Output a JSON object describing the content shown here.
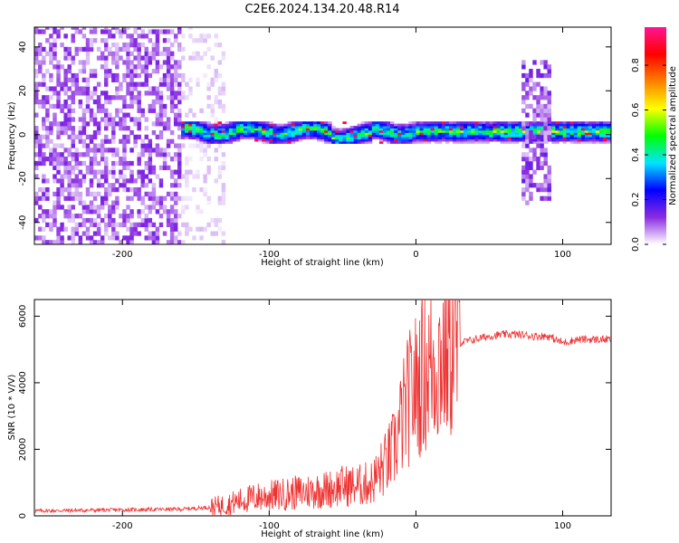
{
  "title": "C2E6.2024.134.20.48.R14",
  "chart_data": [
    {
      "type": "heatmap",
      "xlabel": "Height of straight line (km)",
      "ylabel": "Frequency (Hz)",
      "xlim": [
        -260,
        133
      ],
      "ylim": [
        -50,
        49
      ],
      "xticks": [
        -200,
        -100,
        0,
        100
      ],
      "yticks": [
        -40,
        -20,
        0,
        20,
        40
      ],
      "colorbar": {
        "label": "Normalized spectral amplitude",
        "range": [
          0,
          0.97
        ],
        "ticks": [
          0.0,
          0.2,
          0.4,
          0.6,
          0.8
        ],
        "tick_labels": [
          "0.0",
          "0.2",
          "0.4",
          "0.6",
          "0.8"
        ],
        "colormap": [
          "#ffffff",
          "#8a2be2",
          "#0000ff",
          "#00e5ff",
          "#00ff00",
          "#ffff00",
          "#ff8000",
          "#ff0000",
          "#ff1493"
        ]
      },
      "regions": [
        {
          "name": "noise",
          "x": [
            -260,
            -160
          ],
          "freq": [
            -50,
            49
          ],
          "amplitude": 0.07
        },
        {
          "name": "sparse noise",
          "x": [
            -160,
            -130
          ],
          "freq": [
            -50,
            49
          ],
          "amplitude": 0.02
        },
        {
          "name": "signal band",
          "x": [
            -160,
            133
          ],
          "freq_center": 1,
          "width_hz": 6,
          "amplitude": 0.45
        },
        {
          "name": "burst",
          "x": [
            72,
            92
          ],
          "freq": [
            -32,
            33
          ],
          "amplitude": 0.08
        }
      ]
    },
    {
      "type": "line",
      "xlabel": "Height of straight line (km)",
      "ylabel": "SNR (10 * V/V)",
      "xlim": [
        -260,
        133
      ],
      "ylim": [
        0,
        6500
      ],
      "xticks": [
        -200,
        -100,
        0,
        100
      ],
      "yticks": [
        0,
        2000,
        4000,
        6000
      ],
      "color": "#ee3333",
      "series": [
        {
          "x": [
            -260,
            -240,
            -220,
            -200,
            -180,
            -160,
            -140,
            -130,
            -120,
            -110,
            -100,
            -90,
            -80,
            -70,
            -60,
            -50,
            -40,
            -30,
            -20,
            -15,
            -10,
            -5,
            0,
            5,
            10,
            15,
            20,
            25,
            30,
            40,
            50,
            60,
            70,
            80,
            90,
            100,
            110,
            120,
            133
          ],
          "y": [
            150,
            160,
            170,
            180,
            190,
            200,
            260,
            330,
            450,
            550,
            600,
            650,
            700,
            750,
            800,
            900,
            900,
            1000,
            1600,
            2000,
            2800,
            3500,
            3900,
            4300,
            4500,
            4700,
            4900,
            5100,
            5200,
            5300,
            5400,
            5450,
            5450,
            5400,
            5400,
            5200,
            5300,
            5300,
            5300
          ]
        }
      ]
    }
  ]
}
